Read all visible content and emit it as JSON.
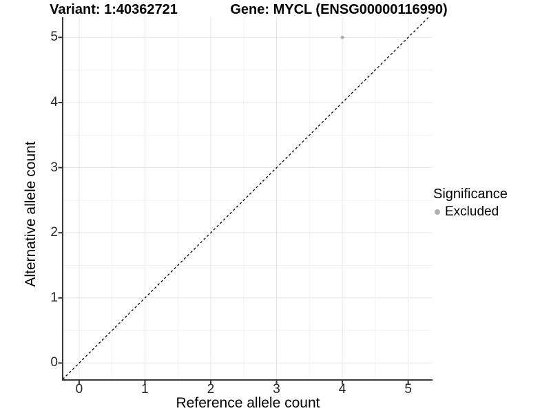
{
  "chart_data": {
    "type": "scatter",
    "titles": {
      "variant": "Variant: 1:40362721",
      "gene": "Gene: MYCL (ENSG00000116990)"
    },
    "xlabel": "Reference allele count",
    "ylabel": "Alternative allele count",
    "x_ticks": [
      0,
      1,
      2,
      3,
      4,
      5
    ],
    "y_ticks": [
      0,
      1,
      2,
      3,
      4,
      5
    ],
    "xlim": [
      -0.25,
      5.37
    ],
    "ylim": [
      -0.26,
      5.31
    ],
    "grid": {
      "major": true,
      "minor": true
    },
    "series": [
      {
        "name": "Excluded",
        "color": "#b0b0b0",
        "points": [
          [
            4,
            5
          ]
        ]
      }
    ],
    "reference_line": {
      "kind": "identity-y-equals-x",
      "style": "dashed",
      "color": "#000000"
    },
    "legend": {
      "title": "Significance",
      "position": "right"
    },
    "colors": {
      "grid_major": "#e6e6e6",
      "grid_minor": "#f2f2f2",
      "axis_line": "#3a3a3a",
      "tick_mark": "#333333",
      "tick_label": "#262626"
    }
  }
}
